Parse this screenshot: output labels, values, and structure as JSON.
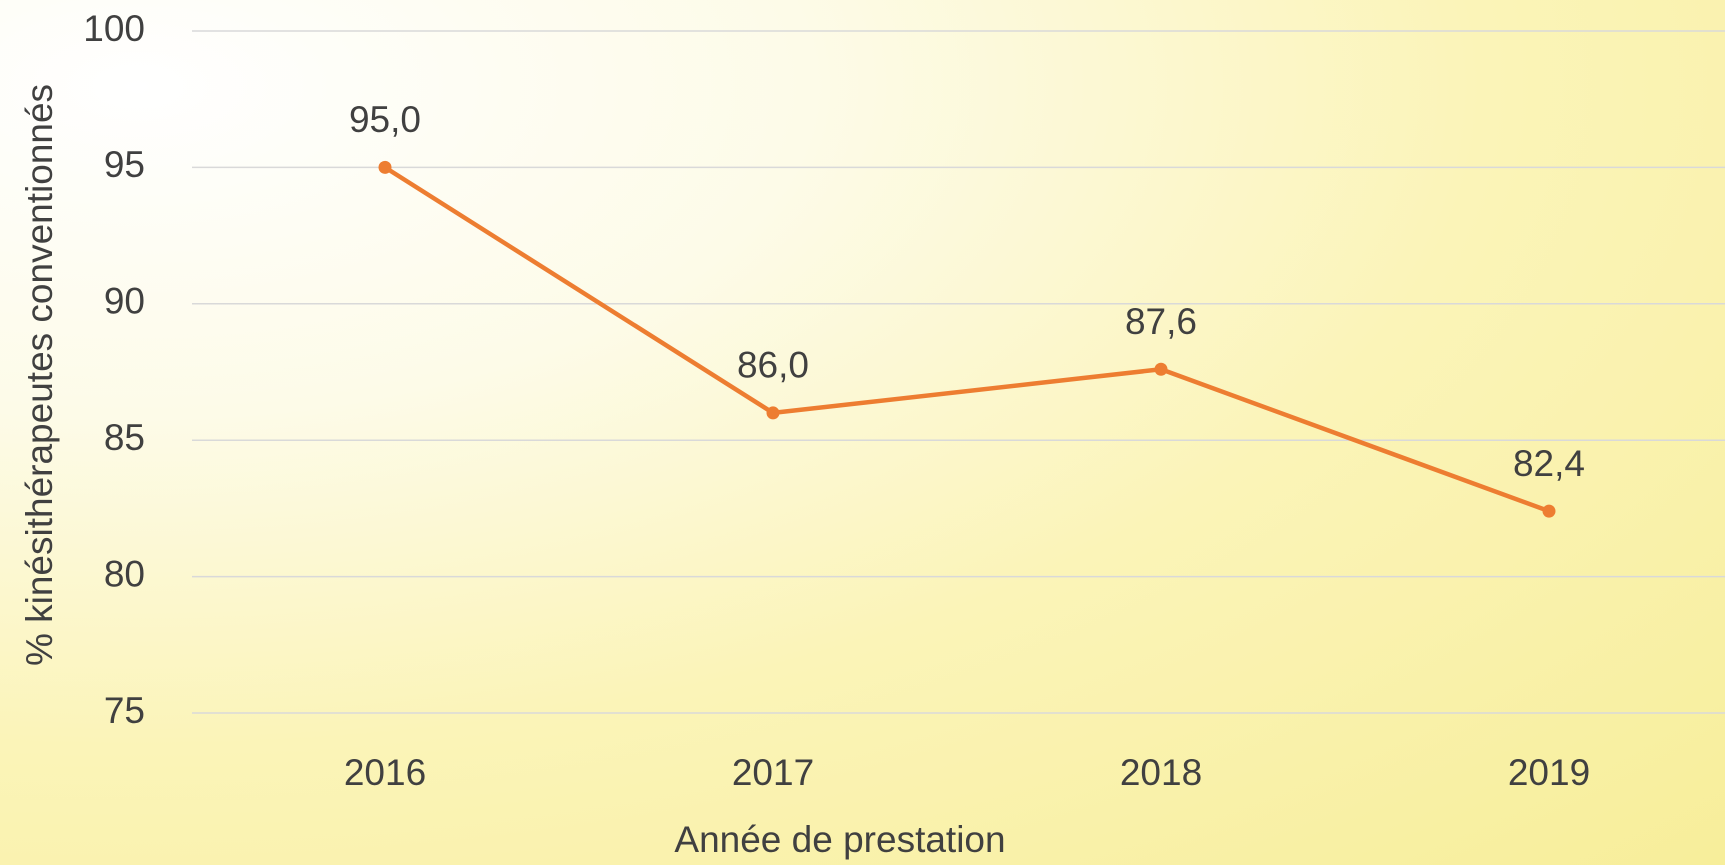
{
  "chart_data": {
    "type": "line",
    "categories": [
      "2016",
      "2017",
      "2018",
      "2019"
    ],
    "values": [
      95.0,
      86.0,
      87.6,
      82.4
    ],
    "value_labels": [
      "95,0",
      "86,0",
      "87,6",
      "82,4"
    ],
    "color": "#ED7D31",
    "xlabel": "Année de prestation",
    "ylabel": "% kinésithérapeutes conventionnés",
    "ylim": [
      75,
      100
    ],
    "yticks": [
      75,
      80,
      85,
      90,
      95,
      100
    ],
    "grid": true
  }
}
